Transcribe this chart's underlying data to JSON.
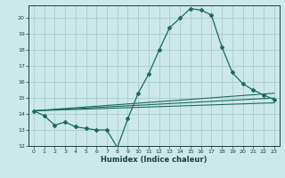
{
  "xlabel": "Humidex (Indice chaleur)",
  "bg_color": "#cce8e8",
  "grid_color": "#aacccc",
  "line_color": "#1a6b5a",
  "xlim": [
    -0.5,
    23.5
  ],
  "ylim": [
    12,
    20.8
  ],
  "yticks": [
    12,
    13,
    14,
    15,
    16,
    17,
    18,
    19,
    20
  ],
  "xticks": [
    0,
    1,
    2,
    3,
    4,
    5,
    6,
    7,
    8,
    9,
    10,
    11,
    12,
    13,
    14,
    15,
    16,
    17,
    18,
    19,
    20,
    21,
    22,
    23
  ],
  "line1_x": [
    0,
    1,
    2,
    3,
    4,
    5,
    6,
    7,
    8,
    9,
    10,
    11,
    12,
    13,
    14,
    15,
    16,
    17,
    18,
    19,
    20,
    21,
    22,
    23
  ],
  "line1_y": [
    14.2,
    13.9,
    13.3,
    13.5,
    13.2,
    13.1,
    13.0,
    13.0,
    11.9,
    13.7,
    15.3,
    16.5,
    18.0,
    19.4,
    20.0,
    20.6,
    20.5,
    20.2,
    18.2,
    16.6,
    15.9,
    15.5,
    15.2,
    14.9
  ],
  "line2_x": [
    0,
    23
  ],
  "line2_y": [
    14.2,
    15.3
  ],
  "line3_x": [
    0,
    23
  ],
  "line3_y": [
    14.2,
    15.0
  ],
  "line4_x": [
    0,
    23
  ],
  "line4_y": [
    14.2,
    14.7
  ]
}
